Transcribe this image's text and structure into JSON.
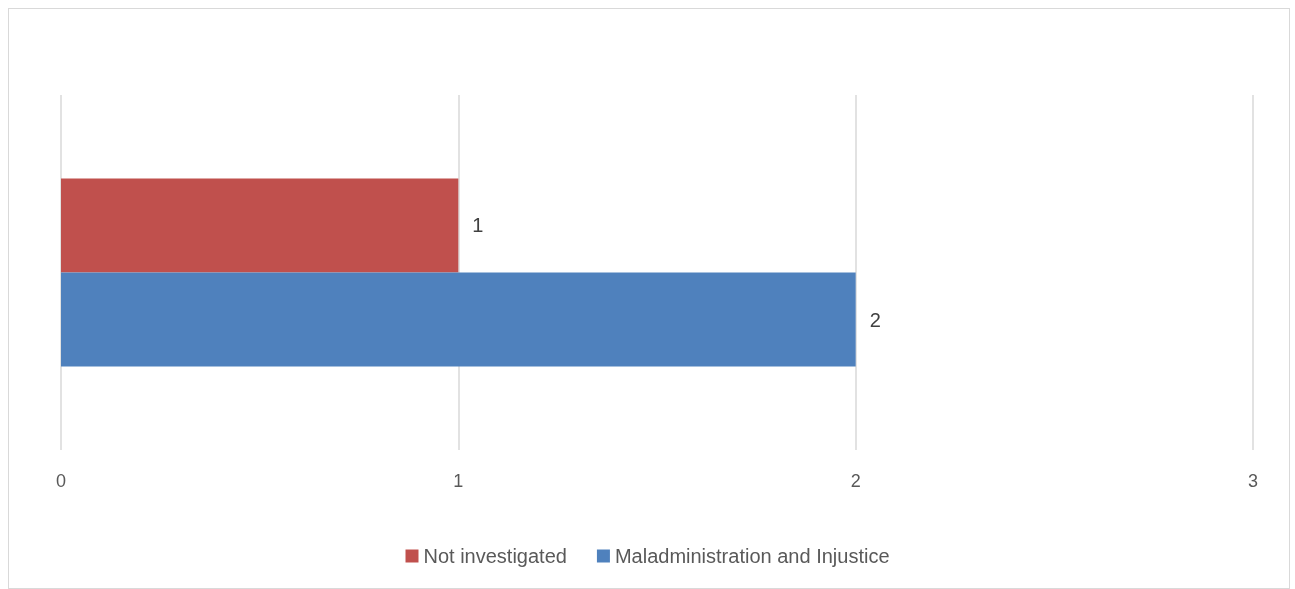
{
  "chart_data": {
    "type": "bar",
    "orientation": "horizontal",
    "categories": [
      null
    ],
    "series": [
      {
        "name": "Not investigated",
        "color": "#c0504d",
        "values": [
          1
        ]
      },
      {
        "name": "Maladministration and Injustice",
        "color": "#4f81bd",
        "values": [
          2
        ]
      }
    ],
    "xlim": [
      0,
      3
    ],
    "xticks": [
      0,
      1,
      2,
      3
    ],
    "grid": "x",
    "legend": "bottom",
    "data_labels": true
  }
}
